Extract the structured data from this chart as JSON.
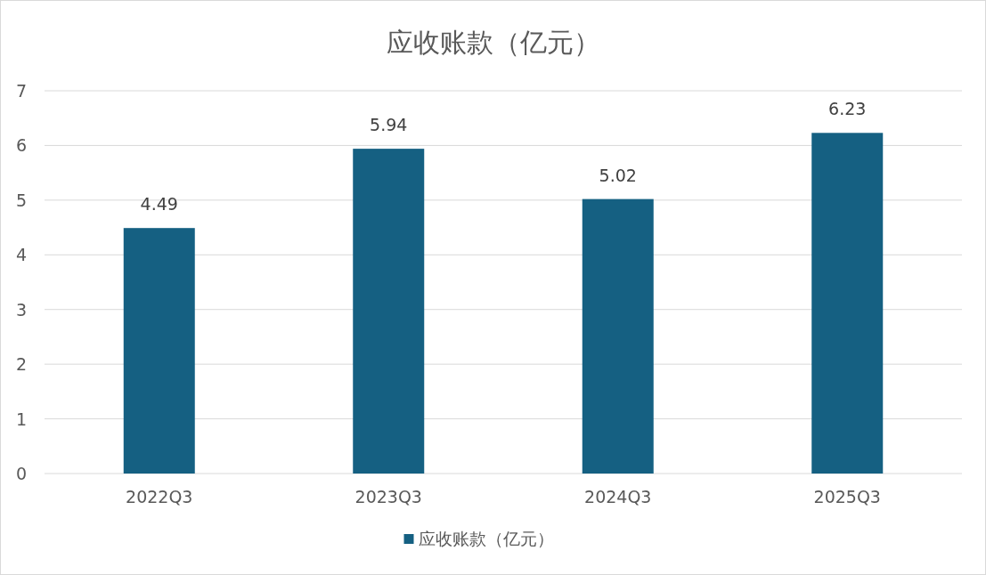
{
  "chart_data": {
    "type": "bar",
    "title": "应收账款（亿元）",
    "categories": [
      "2022Q3",
      "2023Q3",
      "2024Q3",
      "2025Q3"
    ],
    "series": [
      {
        "name": "应收账款（亿元）",
        "color": "#156082",
        "values": [
          4.49,
          5.94,
          5.02,
          6.23
        ]
      }
    ],
    "ylim": [
      0,
      7
    ],
    "yticks": [
      0,
      1,
      2,
      3,
      4,
      5,
      6,
      7
    ],
    "grid": "y",
    "legend": "bottom",
    "data_labels": true
  }
}
